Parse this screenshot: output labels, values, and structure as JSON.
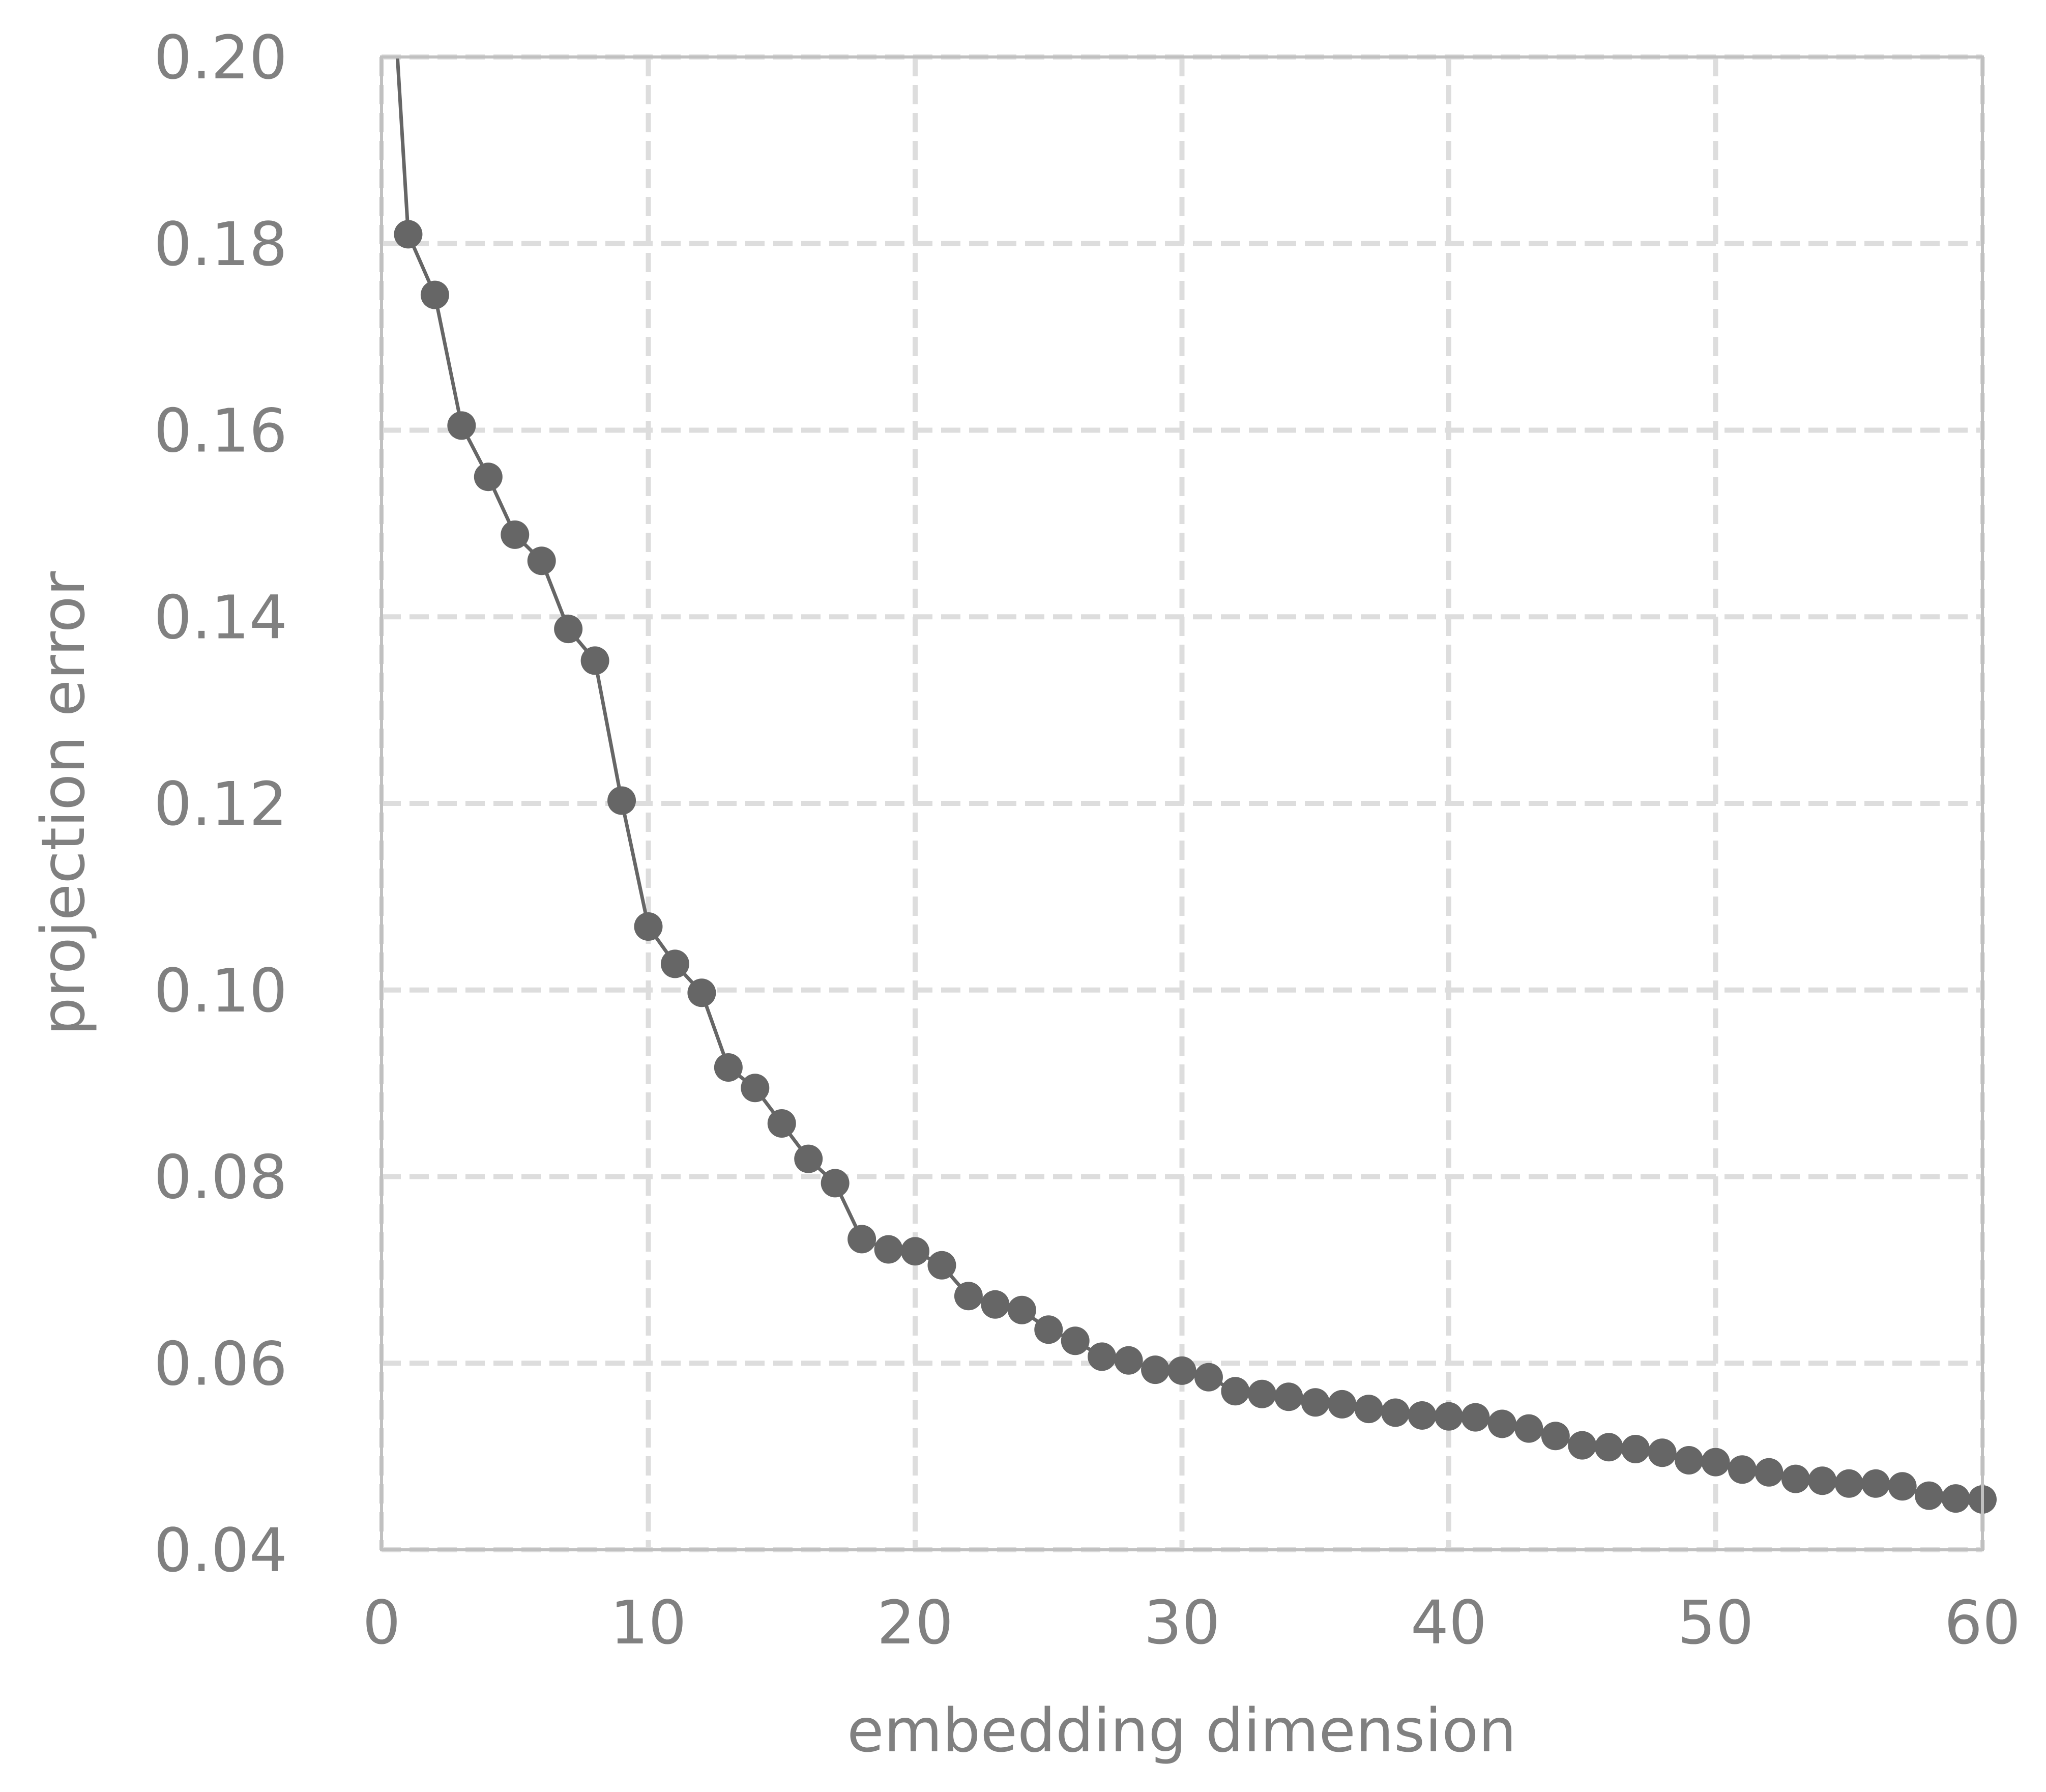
{
  "chart_data": {
    "type": "line",
    "title": "",
    "xlabel": "embedding dimension",
    "ylabel": "projection error",
    "xlim": [
      0,
      60
    ],
    "ylim": [
      0.04,
      0.2
    ],
    "xticks": [
      0,
      10,
      20,
      30,
      40,
      50,
      60
    ],
    "yticks": [
      0.04,
      0.06,
      0.08,
      0.1,
      0.12,
      0.14,
      0.16,
      0.18,
      0.2
    ],
    "xtick_labels": [
      "0",
      "10",
      "20",
      "30",
      "40",
      "50",
      "60"
    ],
    "ytick_labels": [
      "0.04",
      "0.06",
      "0.08",
      "0.10",
      "0.12",
      "0.14",
      "0.16",
      "0.18",
      "0.20"
    ],
    "grid": true,
    "legend": false,
    "colors": {
      "line": "#666666",
      "marker": "#666666",
      "grid": "#dddddd",
      "frame": "#c0c0c0",
      "text": "#808080"
    },
    "series": [
      {
        "x": [
          0,
          1,
          2,
          3,
          4,
          5,
          6,
          7,
          8,
          9,
          10,
          11,
          12,
          13,
          14,
          15,
          16,
          17,
          18,
          19,
          20,
          21,
          22,
          23,
          24,
          25,
          26,
          27,
          28,
          29,
          30,
          31,
          32,
          33,
          34,
          35,
          36,
          37,
          38,
          39,
          40,
          41,
          42,
          43,
          44,
          45,
          46,
          47,
          48,
          49,
          50,
          51,
          52,
          53,
          54,
          55,
          56,
          57,
          58,
          59,
          60
        ],
        "y": [
          0.228,
          0.181,
          0.1745,
          0.1605,
          0.155,
          0.1488,
          0.146,
          0.1387,
          0.1353,
          0.1203,
          0.1068,
          0.1028,
          0.0997,
          0.0917,
          0.0895,
          0.0857,
          0.0819,
          0.0793,
          0.0733,
          0.0722,
          0.072,
          0.0705,
          0.0672,
          0.0663,
          0.0657,
          0.0636,
          0.0624,
          0.0607,
          0.0603,
          0.0593,
          0.0592,
          0.0585,
          0.057,
          0.0567,
          0.0564,
          0.0558,
          0.0556,
          0.0551,
          0.0547,
          0.0544,
          0.0543,
          0.0542,
          0.0535,
          0.053,
          0.0522,
          0.0512,
          0.051,
          0.0508,
          0.0504,
          0.0496,
          0.0494,
          0.0486,
          0.0483,
          0.0476,
          0.0474,
          0.0471,
          0.0471,
          0.0468,
          0.0458,
          0.0455,
          0.0454
        ],
        "markers_from_index": 1
      }
    ]
  }
}
